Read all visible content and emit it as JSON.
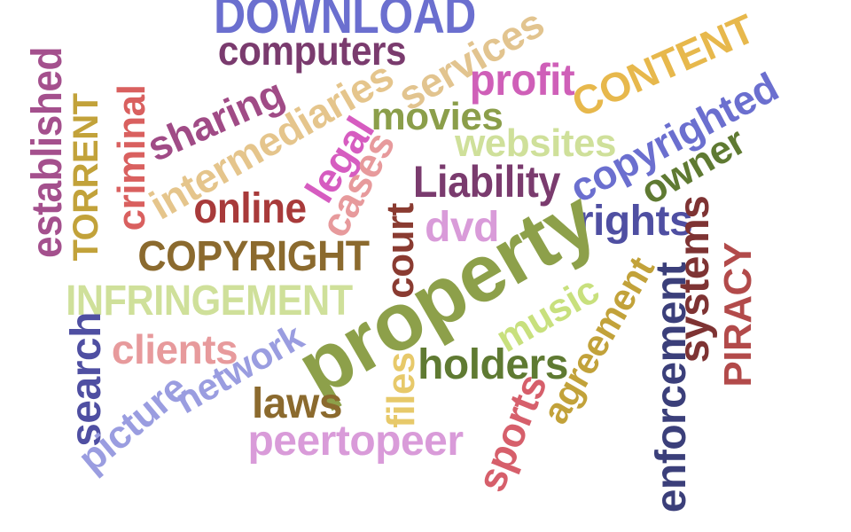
{
  "word_cloud": {
    "words": [
      {
        "key": "download",
        "text": "DOWNLOAD",
        "color": "#6b6fcf"
      },
      {
        "key": "computers",
        "text": "computers",
        "color": "#7a3b6e"
      },
      {
        "key": "services",
        "text": "services",
        "color": "#e2c48f"
      },
      {
        "key": "profit",
        "text": "profit",
        "color": "#cf5fb8"
      },
      {
        "key": "content",
        "text": "CONTENT",
        "color": "#e7b84c"
      },
      {
        "key": "established",
        "text": "established",
        "color": "#a4508d"
      },
      {
        "key": "torrent",
        "text": "TORRENT",
        "color": "#c2a23a"
      },
      {
        "key": "criminal",
        "text": "criminal",
        "color": "#d9605f"
      },
      {
        "key": "sharing",
        "text": "sharing",
        "color": "#a04b86"
      },
      {
        "key": "intermediaries",
        "text": "intermediaries",
        "color": "#e5c58c"
      },
      {
        "key": "movies",
        "text": "movies",
        "color": "#8b9e4a"
      },
      {
        "key": "websites",
        "text": "websites",
        "color": "#cfe09a"
      },
      {
        "key": "copyrighted",
        "text": "copyrighted",
        "color": "#6b6fcf"
      },
      {
        "key": "owner",
        "text": "owner",
        "color": "#5f7a32"
      },
      {
        "key": "legal",
        "text": "legal",
        "color": "#d65cc0"
      },
      {
        "key": "cases",
        "text": "cases",
        "color": "#e79a9c"
      },
      {
        "key": "liability",
        "text": "Liability",
        "color": "#7a3b6e"
      },
      {
        "key": "online",
        "text": "online",
        "color": "#a83a3a"
      },
      {
        "key": "dvd",
        "text": "dvd",
        "color": "#d99bd9"
      },
      {
        "key": "rights",
        "text": "rights",
        "color": "#4f4fa2"
      },
      {
        "key": "systems",
        "text": "systems",
        "color": "#7e3333"
      },
      {
        "key": "piracy",
        "text": "PIRACY",
        "color": "#b24a4a"
      },
      {
        "key": "copyright",
        "text": "COPYRIGHT",
        "color": "#8b6a2e"
      },
      {
        "key": "court",
        "text": "court",
        "color": "#8a3b31"
      },
      {
        "key": "property",
        "text": "property",
        "color": "#8da04a"
      },
      {
        "key": "infringement",
        "text": "INFRINGEMENT",
        "color": "#cfe09a"
      },
      {
        "key": "music",
        "text": "music",
        "color": "#c8e07d"
      },
      {
        "key": "agreement",
        "text": "agreement",
        "color": "#c2a23a"
      },
      {
        "key": "enforcement",
        "text": "enforcement",
        "color": "#3b3f7a"
      },
      {
        "key": "search",
        "text": "search",
        "color": "#4f4fa2"
      },
      {
        "key": "clients",
        "text": "clients",
        "color": "#e79a9c"
      },
      {
        "key": "network",
        "text": "network",
        "color": "#9a9de0"
      },
      {
        "key": "picture",
        "text": "picture",
        "color": "#9a9de0"
      },
      {
        "key": "laws",
        "text": "laws",
        "color": "#8b6a2e"
      },
      {
        "key": "files",
        "text": "files",
        "color": "#e7c96a"
      },
      {
        "key": "holders",
        "text": "holders",
        "color": "#5f7a32"
      },
      {
        "key": "sports",
        "text": "sports",
        "color": "#d65f6b"
      },
      {
        "key": "peertopeer",
        "text": "peertopeer",
        "color": "#d99bd9"
      }
    ]
  }
}
